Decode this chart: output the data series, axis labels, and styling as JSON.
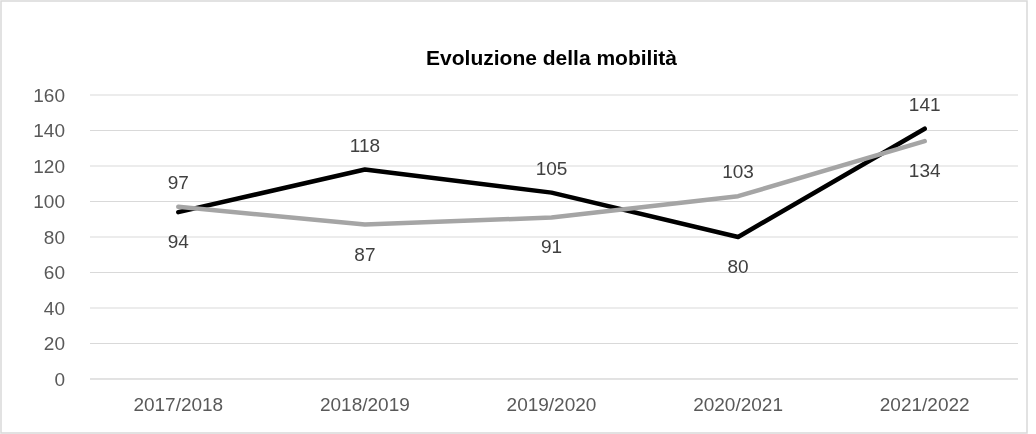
{
  "chart_data": {
    "type": "line",
    "title": "Evoluzione della mobilità",
    "categories": [
      "2017/2018",
      "2018/2019",
      "2019/2020",
      "2020/2021",
      "2021/2022"
    ],
    "series": [
      {
        "color": "#000000",
        "values": [
          94,
          118,
          105,
          80,
          141
        ]
      },
      {
        "color": "#a5a5a5",
        "values": [
          97,
          87,
          91,
          103,
          134
        ]
      }
    ],
    "ylim": [
      0,
      160
    ],
    "yticks": [
      0,
      20,
      40,
      60,
      80,
      100,
      120,
      140,
      160
    ],
    "grid": "y",
    "data_labels": true
  }
}
